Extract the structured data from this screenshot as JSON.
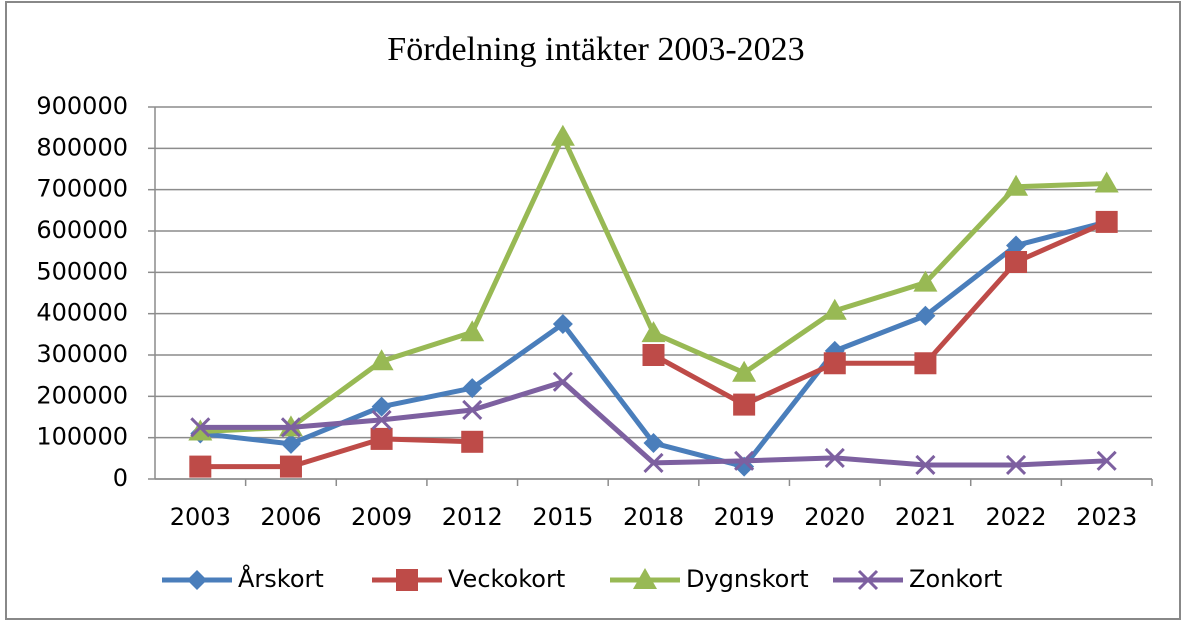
{
  "chart_data": {
    "type": "line",
    "title": "Fördelning intäkter 2003-2023",
    "categories": [
      "2003",
      "2006",
      "2009",
      "2012",
      "2015",
      "2018",
      "2019",
      "2020",
      "2021",
      "2022",
      "2023"
    ],
    "ylim": [
      0,
      900000
    ],
    "yticks": [
      0,
      100000,
      200000,
      300000,
      400000,
      500000,
      600000,
      700000,
      800000,
      900000
    ],
    "grid": true,
    "legend": "bottom",
    "series": [
      {
        "name": "Årskort",
        "color": "#4a7ebb",
        "marker": "diamond",
        "values": [
          110000,
          85000,
          175000,
          220000,
          375000,
          87000,
          30000,
          310000,
          395000,
          565000,
          622000
        ]
      },
      {
        "name": "Veckokort",
        "color": "#be4b48",
        "marker": "square",
        "values": [
          30000,
          30000,
          97000,
          90000,
          null,
          300000,
          180000,
          280000,
          280000,
          525000,
          622000
        ]
      },
      {
        "name": "Dygnskort",
        "color": "#98b954",
        "marker": "triangle",
        "values": [
          115000,
          125000,
          285000,
          355000,
          828000,
          353000,
          257000,
          407000,
          475000,
          707000,
          715000
        ]
      },
      {
        "name": "Zonkort",
        "color": "#7d60a0",
        "marker": "x",
        "values": [
          125000,
          125000,
          143000,
          167000,
          235000,
          39000,
          44000,
          51000,
          34000,
          34000,
          44000
        ]
      }
    ]
  }
}
